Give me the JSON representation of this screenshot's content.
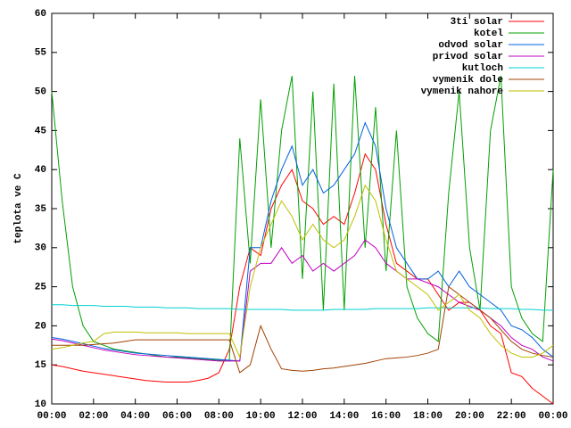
{
  "chart_data": {
    "type": "line",
    "y_label": "teplota ve C",
    "x": [
      0,
      0.5,
      1,
      1.5,
      2,
      2.5,
      3,
      3.5,
      4,
      4.5,
      5,
      5.5,
      6,
      6.5,
      7,
      7.5,
      8,
      8.5,
      9,
      9.5,
      10,
      10.5,
      11,
      11.5,
      12,
      12.5,
      13,
      13.5,
      14,
      14.5,
      15,
      15.5,
      16,
      16.5,
      17,
      17.5,
      18,
      18.5,
      19,
      19.5,
      20,
      20.5,
      21,
      21.5,
      22,
      22.5,
      23,
      23.5,
      24
    ],
    "xlim": [
      0,
      24
    ],
    "xticks": [
      {
        "value": 0,
        "label": "00:00"
      },
      {
        "value": 2,
        "label": "02:00"
      },
      {
        "value": 4,
        "label": "04:00"
      },
      {
        "value": 6,
        "label": "06:00"
      },
      {
        "value": 8,
        "label": "08:00"
      },
      {
        "value": 10,
        "label": "10:00"
      },
      {
        "value": 12,
        "label": "12:00"
      },
      {
        "value": 14,
        "label": "14:00"
      },
      {
        "value": 16,
        "label": "16:00"
      },
      {
        "value": 18,
        "label": "18:00"
      },
      {
        "value": 20,
        "label": "20:00"
      },
      {
        "value": 22,
        "label": "22:00"
      },
      {
        "value": 24,
        "label": "00:00"
      }
    ],
    "ylim": [
      10,
      60
    ],
    "yticks": [
      10,
      15,
      20,
      25,
      30,
      35,
      40,
      45,
      50,
      55,
      60
    ],
    "legend": "top-right",
    "series": [
      {
        "name": "3ti solar",
        "color": "#ff0000",
        "values": [
          15,
          14.8,
          14.5,
          14.2,
          14,
          13.8,
          13.6,
          13.4,
          13.2,
          13,
          12.9,
          12.8,
          12.8,
          12.8,
          13,
          13.3,
          14,
          17,
          25,
          30,
          29,
          35,
          38,
          40,
          36,
          35,
          33,
          34,
          33,
          37,
          42,
          40,
          33,
          28,
          27,
          26,
          26,
          24,
          22,
          23,
          23,
          22,
          20,
          19,
          14,
          13.5,
          12,
          11,
          10
        ]
      },
      {
        "name": "kotel",
        "color": "#00a000",
        "values": [
          50,
          36,
          25,
          20,
          18,
          17.5,
          17,
          16.8,
          16.6,
          16.4,
          16.2,
          16,
          16,
          15.9,
          15.8,
          15.7,
          15.6,
          15.5,
          44,
          28,
          49,
          30,
          45,
          52,
          26,
          50,
          22,
          51,
          22,
          52,
          30,
          48,
          27,
          45,
          25,
          21,
          19,
          18,
          37,
          50,
          30,
          22,
          45,
          52,
          25,
          21,
          19,
          18,
          40
        ]
      },
      {
        "name": "odvod solar",
        "color": "#0060e0",
        "values": [
          18.5,
          18.3,
          18,
          17.7,
          17.4,
          17.1,
          16.9,
          16.7,
          16.5,
          16.4,
          16.3,
          16.2,
          16.1,
          16,
          15.9,
          15.8,
          15.7,
          15.6,
          15.5,
          30,
          30,
          36,
          40,
          43,
          38,
          40,
          37,
          38,
          40,
          42,
          46,
          43,
          35,
          30,
          28,
          26,
          26,
          27,
          25,
          27,
          25,
          24,
          23,
          22,
          20,
          19.5,
          18.5,
          17,
          16
        ]
      },
      {
        "name": "privod solar",
        "color": "#c000c0",
        "values": [
          18.3,
          18.1,
          17.8,
          17.5,
          17.2,
          16.9,
          16.7,
          16.5,
          16.3,
          16.2,
          16.1,
          16,
          15.9,
          15.8,
          15.7,
          15.6,
          15.5,
          15.5,
          15.5,
          27,
          28,
          28,
          30,
          28,
          29,
          27,
          28,
          27,
          28,
          29,
          31,
          30,
          28,
          27,
          26,
          26,
          25.5,
          25,
          24,
          23,
          22.5,
          22,
          21,
          20,
          18.5,
          17.5,
          17,
          16,
          15.5
        ]
      },
      {
        "name": "kutloch",
        "color": "#00d0d0",
        "values": [
          22.7,
          22.7,
          22.6,
          22.6,
          22.6,
          22.5,
          22.5,
          22.5,
          22.4,
          22.4,
          22.4,
          22.3,
          22.3,
          22.3,
          22.2,
          22.2,
          22.2,
          22.2,
          22.1,
          22.1,
          22.1,
          22.1,
          22.1,
          22,
          22,
          22,
          22,
          22.1,
          22.1,
          22.1,
          22.1,
          22.2,
          22.2,
          22.2,
          22.2,
          22.2,
          22.3,
          22.3,
          22.3,
          22.3,
          22.3,
          22.3,
          22.2,
          22.2,
          22.2,
          22.1,
          22.1,
          22,
          22
        ]
      },
      {
        "name": "vymenik dole",
        "color": "#a04000",
        "values": [
          17.5,
          17.5,
          17.5,
          17.5,
          17.6,
          17.7,
          17.8,
          18,
          18.2,
          18.2,
          18.2,
          18.2,
          18.2,
          18.2,
          18.2,
          18.2,
          18.2,
          18.2,
          14,
          15,
          20,
          17,
          14.5,
          14.3,
          14.2,
          14.3,
          14.5,
          14.6,
          14.8,
          15,
          15.2,
          15.5,
          15.8,
          15.9,
          16,
          16.2,
          16.5,
          17,
          25,
          24,
          23,
          22,
          21,
          19.5,
          18,
          17,
          16.5,
          16.2,
          16
        ]
      },
      {
        "name": "vymenik nahore",
        "color": "#c0c000",
        "values": [
          17,
          17.2,
          17.5,
          17.8,
          18,
          19,
          19.2,
          19.2,
          19.2,
          19.1,
          19.1,
          19.1,
          19.1,
          19,
          19,
          19,
          19,
          19,
          16,
          25,
          30,
          33,
          36,
          34,
          31,
          33,
          31,
          30,
          31,
          34,
          38,
          36,
          31,
          27,
          26,
          25,
          24,
          22,
          23,
          24,
          22,
          21,
          19,
          17.5,
          16.5,
          16,
          16,
          16.5,
          17.5
        ]
      }
    ]
  }
}
